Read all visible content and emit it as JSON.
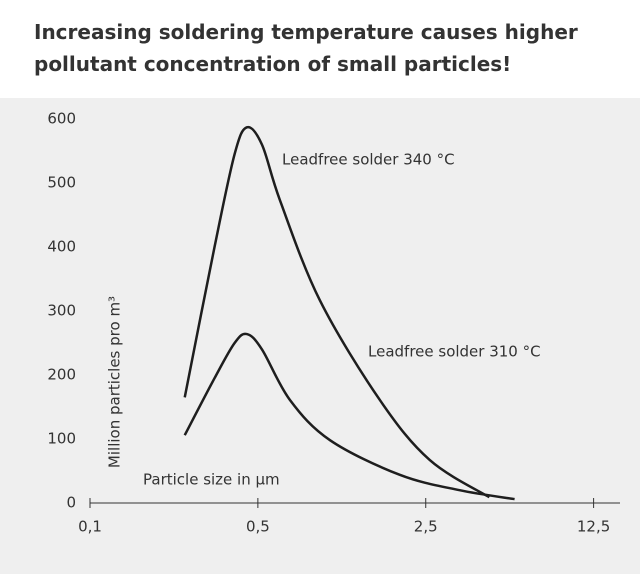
{
  "chart_data": {
    "type": "line",
    "title": "Increasing soldering temperature causes higher pollutant concentration of small particles!",
    "x_label": "Particle size in µm",
    "y_label": "Million particles pro m³",
    "xscale": "log",
    "xlim": [
      0.1,
      16.1
    ],
    "xticks": [
      {
        "value": 0.1,
        "label": "0,1"
      },
      {
        "value": 0.5,
        "label": "0,5"
      },
      {
        "value": 2.5,
        "label": "2,5"
      },
      {
        "value": 12.5,
        "label": "12,5"
      }
    ],
    "ylim": [
      0,
      600
    ],
    "yticks": [
      0,
      100,
      200,
      300,
      400,
      500,
      600
    ],
    "grid": false,
    "series": [
      {
        "name": "Leadfree solder 340 °C",
        "color": "#1e1e1e",
        "x": [
          0.248,
          0.33,
          0.4,
          0.45,
          0.52,
          0.618,
          0.905,
          1.61,
          2.6,
          4.6
        ],
        "values": [
          165,
          400,
          545,
          587,
          560,
          473,
          317,
          161,
          67,
          9
        ]
      },
      {
        "name": "Leadfree solder 310 °C",
        "color": "#1e1e1e",
        "x": [
          0.248,
          0.33,
          0.4,
          0.45,
          0.52,
          0.68,
          1.0,
          1.95,
          3.46,
          5.86
        ],
        "values": [
          106,
          195,
          250,
          264,
          240,
          161,
          98,
          44,
          20,
          6
        ]
      }
    ]
  }
}
